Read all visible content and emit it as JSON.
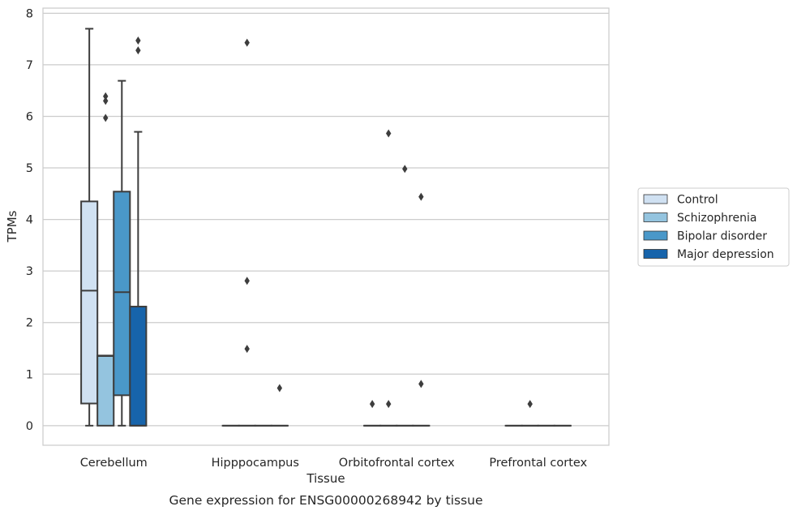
{
  "chart_data": {
    "type": "box",
    "title": "Gene expression for ENSG00000268942 by tissue",
    "xlabel": "Tissue",
    "ylabel": "TPMs",
    "ylim": [
      -0.38,
      8.1
    ],
    "yticks": [
      0,
      1,
      2,
      3,
      4,
      5,
      6,
      7,
      8
    ],
    "grid": "horizontal",
    "legend_position": "right",
    "categories": [
      "Cerebellum",
      "Hipppocampus",
      "Orbitofrontal cortex",
      "Prefrontal cortex"
    ],
    "series": [
      {
        "name": "Control",
        "color": "#d0e1f2",
        "boxes": [
          {
            "q1": 0.43,
            "median": 2.62,
            "q3": 4.35,
            "whisker_low": 0.0,
            "whisker_high": 7.7,
            "outliers": []
          },
          {
            "q1": 0.0,
            "median": 0.0,
            "q3": 0.0,
            "whisker_low": 0.0,
            "whisker_high": 0.0,
            "outliers": []
          },
          {
            "q1": 0.0,
            "median": 0.0,
            "q3": 0.0,
            "whisker_low": 0.0,
            "whisker_high": 0.0,
            "outliers": [
              0.42
            ]
          },
          {
            "q1": 0.0,
            "median": 0.0,
            "q3": 0.0,
            "whisker_low": 0.0,
            "whisker_high": 0.0,
            "outliers": []
          }
        ]
      },
      {
        "name": "Schizophrenia",
        "color": "#94c4df",
        "boxes": [
          {
            "q1": 0.0,
            "median": 1.35,
            "q3": 1.36,
            "whisker_low": 0.0,
            "whisker_high": 1.36,
            "outliers": [
              5.97,
              6.3,
              6.39
            ]
          },
          {
            "q1": 0.0,
            "median": 0.0,
            "q3": 0.0,
            "whisker_low": 0.0,
            "whisker_high": 0.0,
            "outliers": [
              1.49,
              2.81,
              7.43
            ]
          },
          {
            "q1": 0.0,
            "median": 0.0,
            "q3": 0.0,
            "whisker_low": 0.0,
            "whisker_high": 0.0,
            "outliers": [
              0.42,
              5.67
            ]
          },
          {
            "q1": 0.0,
            "median": 0.0,
            "q3": 0.0,
            "whisker_low": 0.0,
            "whisker_high": 0.0,
            "outliers": [
              0.42
            ]
          }
        ]
      },
      {
        "name": "Bipolar disorder",
        "color": "#4a98c9",
        "boxes": [
          {
            "q1": 0.59,
            "median": 2.59,
            "q3": 4.54,
            "whisker_low": 0.0,
            "whisker_high": 6.69,
            "outliers": []
          },
          {
            "q1": 0.0,
            "median": 0.0,
            "q3": 0.0,
            "whisker_low": 0.0,
            "whisker_high": 0.0,
            "outliers": []
          },
          {
            "q1": 0.0,
            "median": 0.0,
            "q3": 0.0,
            "whisker_low": 0.0,
            "whisker_high": 0.0,
            "outliers": [
              4.98
            ]
          },
          {
            "q1": 0.0,
            "median": 0.0,
            "q3": 0.0,
            "whisker_low": 0.0,
            "whisker_high": 0.0,
            "outliers": []
          }
        ]
      },
      {
        "name": "Major depression",
        "color": "#1764ab",
        "boxes": [
          {
            "q1": 0.0,
            "median": 0.0,
            "q3": 2.31,
            "whisker_low": 0.0,
            "whisker_high": 5.7,
            "outliers": [
              7.28,
              7.47
            ]
          },
          {
            "q1": 0.0,
            "median": 0.0,
            "q3": 0.0,
            "whisker_low": 0.0,
            "whisker_high": 0.0,
            "outliers": [
              0.73
            ]
          },
          {
            "q1": 0.0,
            "median": 0.0,
            "q3": 0.0,
            "whisker_low": 0.0,
            "whisker_high": 0.0,
            "outliers": [
              0.81,
              4.44
            ]
          },
          {
            "q1": 0.0,
            "median": 0.0,
            "q3": 0.0,
            "whisker_low": 0.0,
            "whisker_high": 0.0,
            "outliers": []
          }
        ]
      }
    ]
  }
}
